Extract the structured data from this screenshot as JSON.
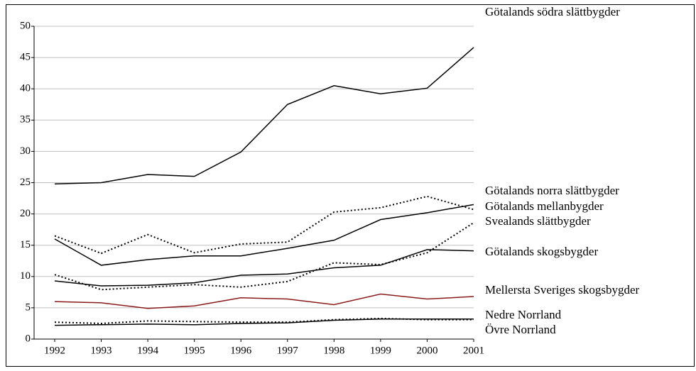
{
  "chart_data": {
    "type": "line",
    "categories": [
      "1992",
      "1993",
      "1994",
      "1995",
      "1996",
      "1997",
      "1998",
      "1999",
      "2000",
      "2001"
    ],
    "ylim": [
      0,
      50
    ],
    "yticks": [
      0,
      5,
      10,
      15,
      20,
      25,
      30,
      35,
      40,
      45,
      50
    ],
    "grid": true,
    "series": [
      {
        "name": "Götalands södra slättbygder",
        "color": "#000000",
        "style": "solid",
        "values": [
          24.8,
          25.0,
          26.3,
          26.0,
          29.9,
          37.5,
          40.5,
          39.2,
          40.1,
          46.6
        ]
      },
      {
        "name": "Götalands norra slättbygder",
        "color": "#000000",
        "style": "dotted",
        "values": [
          16.5,
          13.7,
          16.7,
          13.8,
          15.2,
          15.5,
          20.3,
          21.0,
          22.8,
          20.7
        ]
      },
      {
        "name": "Götalands mellanbygder",
        "color": "#000000",
        "style": "solid",
        "values": [
          16.0,
          11.8,
          12.7,
          13.3,
          13.3,
          14.5,
          15.8,
          19.1,
          20.2,
          21.5
        ]
      },
      {
        "name": "Svealands slättbygder",
        "color": "#000000",
        "style": "dotted",
        "values": [
          10.3,
          7.9,
          8.3,
          8.7,
          8.3,
          9.2,
          12.2,
          11.9,
          13.8,
          18.6
        ]
      },
      {
        "name": "Götalands skogsbygder",
        "color": "#000000",
        "style": "solid",
        "values": [
          9.3,
          8.5,
          8.6,
          9.0,
          10.2,
          10.4,
          11.4,
          11.8,
          14.3,
          14.1
        ]
      },
      {
        "name": "Mellersta Sveriges skogsbygder",
        "color": "#8b1a1a",
        "style": "solid",
        "values": [
          6.0,
          5.8,
          4.9,
          5.3,
          6.6,
          6.4,
          5.5,
          7.2,
          6.4,
          6.8
        ]
      },
      {
        "name": "Nedre Norrland",
        "color": "#000000",
        "style": "dotted",
        "values": [
          2.7,
          2.5,
          2.9,
          2.8,
          2.7,
          2.7,
          3.1,
          3.3,
          3.1,
          3.1
        ]
      },
      {
        "name": "Övre Norrland",
        "color": "#000000",
        "style": "solid",
        "values": [
          2.2,
          2.3,
          2.4,
          2.3,
          2.5,
          2.6,
          3.0,
          3.2,
          3.2,
          3.2
        ]
      }
    ]
  }
}
